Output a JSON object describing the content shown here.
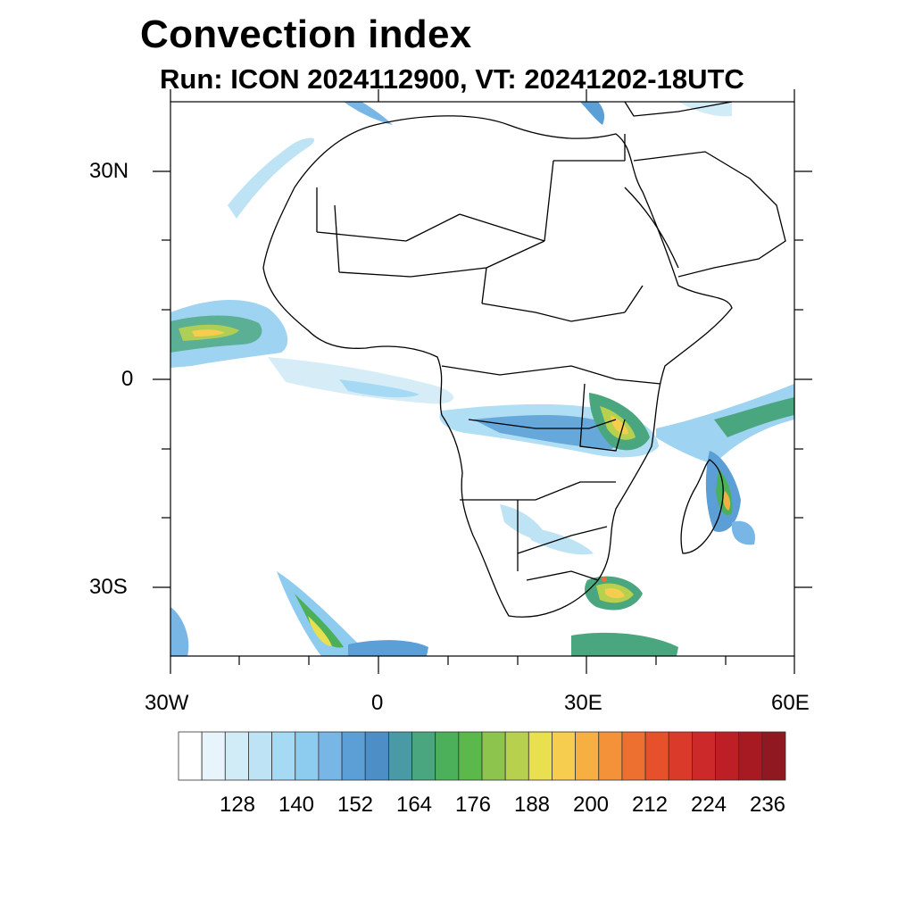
{
  "title": "Convection index",
  "subtitle": "Run: ICON 2024112900,  VT: 20241202-18UTC",
  "map": {
    "lat_labels": [
      "30N",
      "0",
      "30S"
    ],
    "lon_labels": [
      "30W",
      "0",
      "30E",
      "60E"
    ]
  },
  "colorbar": {
    "labels": [
      "128",
      "140",
      "152",
      "164",
      "176",
      "188",
      "200",
      "212",
      "224",
      "236"
    ],
    "colors": [
      "#ffffff",
      "#e8f4fb",
      "#d1ebf7",
      "#bde3f5",
      "#a6daf4",
      "#8dcbef",
      "#78b6e6",
      "#5b9fd6",
      "#4d8ec7",
      "#4a9aa6",
      "#4aa67e",
      "#4cb05b",
      "#5bb84a",
      "#8cc44e",
      "#b7d14f",
      "#e8e04f",
      "#f6cd4f",
      "#f6b042",
      "#f39239",
      "#ee7030",
      "#e6502a",
      "#da3a2a",
      "#cc2a2a",
      "#bc1f26",
      "#a71a22",
      "#901820"
    ]
  }
}
